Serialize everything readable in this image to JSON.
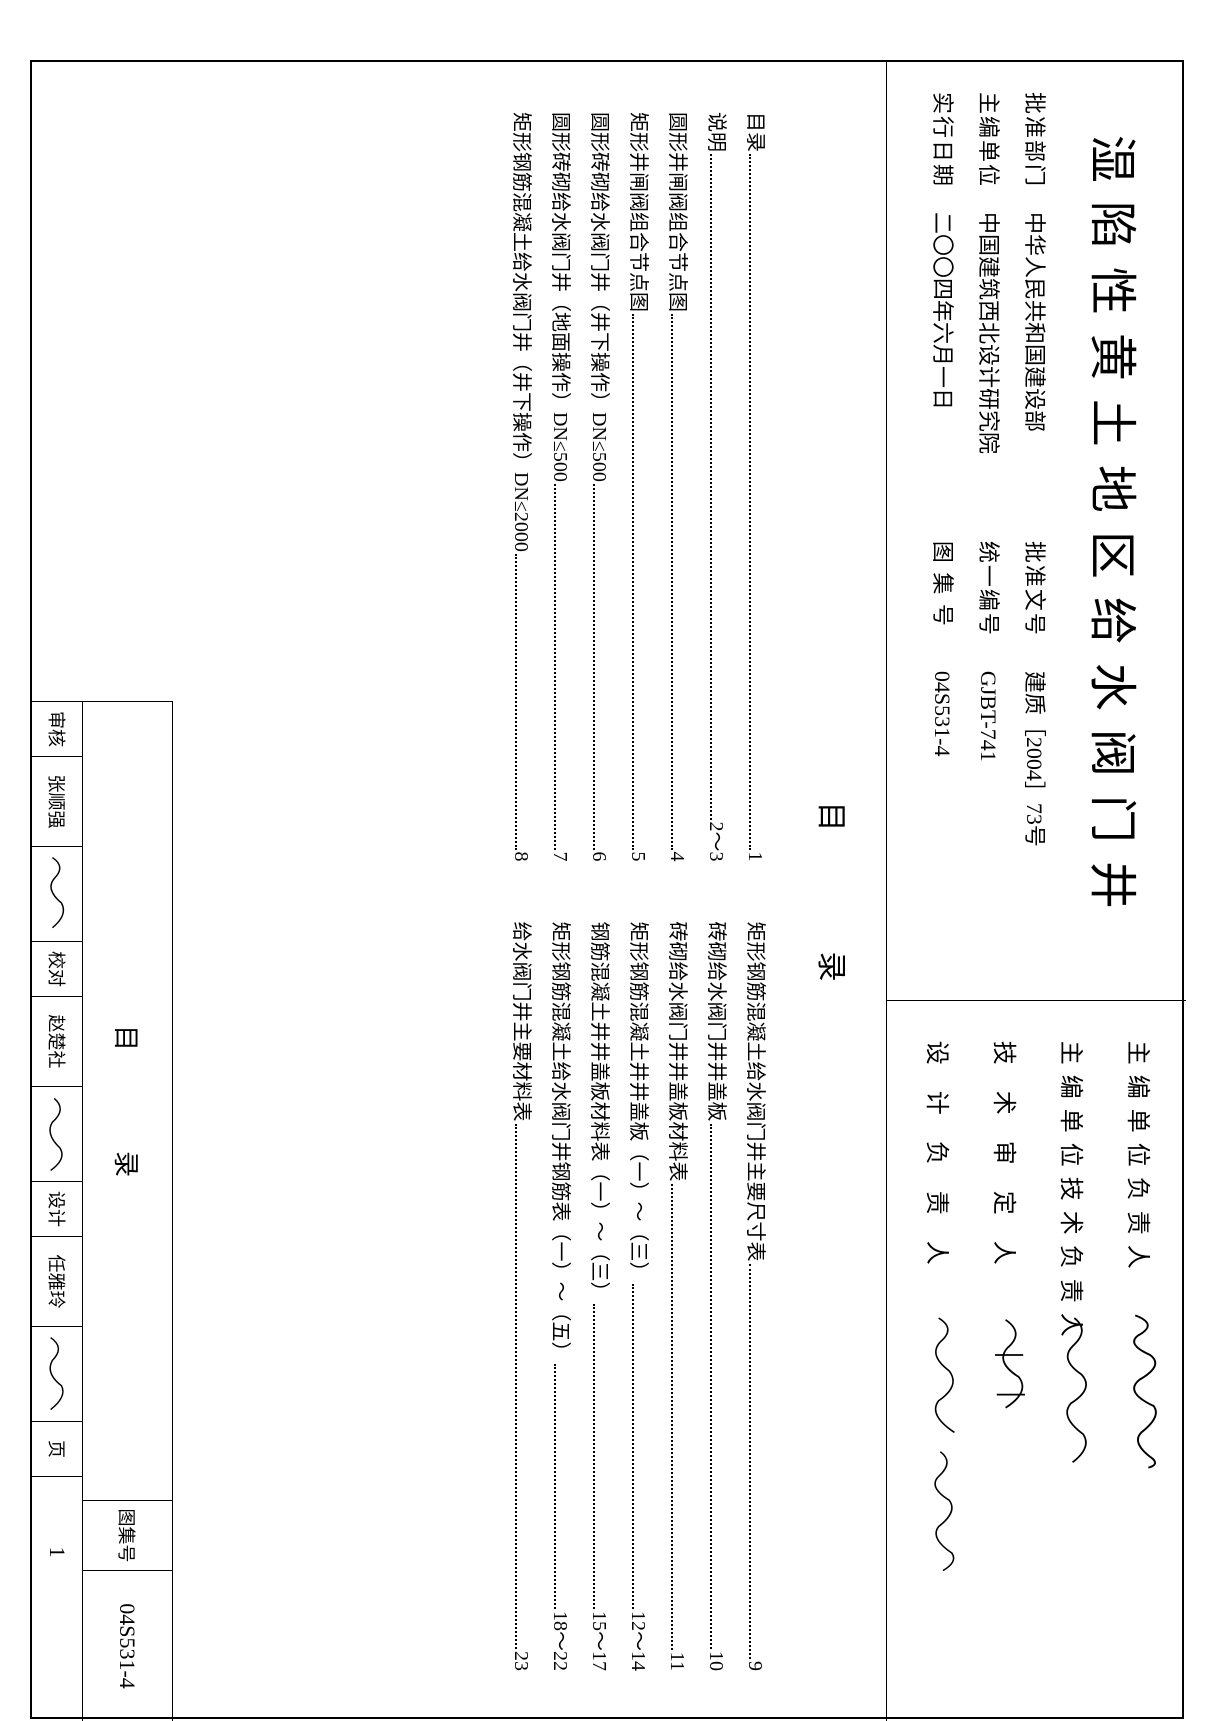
{
  "title": "湿陷性黄土地区给水阀门井",
  "header_left": {
    "rows": [
      {
        "label": "批准部门",
        "value": "中华人民共和国建设部",
        "label2": "批准文号",
        "value2": "建质［2004］73号"
      },
      {
        "label": "主编单位",
        "value": "中国建筑西北设计研究院",
        "label2": "统一编号",
        "value2": "GJBT-741"
      },
      {
        "label": "实行日期",
        "value": "二〇〇四年六月一日",
        "label2": "图 集 号",
        "value2": "04S531-4"
      }
    ]
  },
  "header_right": {
    "rows": [
      {
        "label": "主编单位负责人"
      },
      {
        "label": "主编单位技术负责人"
      },
      {
        "label": "技 术 审 定 人"
      },
      {
        "label": "设 计 负 责 人"
      }
    ]
  },
  "toc_title": "目录",
  "toc_left": [
    {
      "label": "目录",
      "page": "1"
    },
    {
      "label": "说明",
      "page": "2～3"
    },
    {
      "label": "圆形井闸阀组合节点图",
      "page": "4"
    },
    {
      "label": "矩形井闸阀组合节点图",
      "page": "5"
    },
    {
      "label": "圆形砖砌给水阀门井（井下操作）DN≤500",
      "page": "6"
    },
    {
      "label": "圆形砖砌给水阀门井（地面操作）DN≤500",
      "page": "7"
    },
    {
      "label": "矩形钢筋混凝土给水阀门井（井下操作）DN≤2000",
      "page": "8"
    }
  ],
  "toc_right": [
    {
      "label": "矩形钢筋混凝土给水阀门井主要尺寸表",
      "page": "9"
    },
    {
      "label": "砖砌给水阀门井井盖板",
      "page": "10"
    },
    {
      "label": "砖砌给水阀门井井盖板材料表",
      "page": "11"
    },
    {
      "label": "矩形钢筋混凝土井井盖板（一）～（三）",
      "page": "12～14"
    },
    {
      "label": "钢筋混凝土井井盖板材料表（一）～（三）",
      "page": "15～17"
    },
    {
      "label": "矩形钢筋混凝土给水阀门井钢筋表（一）～（五）",
      "page": "18～22"
    },
    {
      "label": "给水阀门井主要材料表",
      "page": "23"
    }
  ],
  "footer": {
    "title": "目录",
    "tuji_label": "图集号",
    "tuji_value": "04S531-4",
    "cells": [
      {
        "label": "审核",
        "name": "张顺强"
      },
      {
        "label": "校对",
        "name": "赵楚社"
      },
      {
        "label": "设计",
        "name": "任雅玲"
      }
    ],
    "page_label": "页",
    "page_value": "1"
  }
}
